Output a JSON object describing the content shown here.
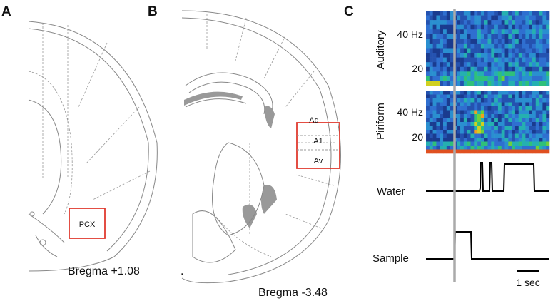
{
  "panels": [
    {
      "label": "A",
      "region": "PCX",
      "bregma": "Bregma +1.08",
      "mark": "."
    },
    {
      "label": "B",
      "regions": [
        "Ad",
        "A1",
        "Av"
      ],
      "bregma": "Bregma -3.48"
    },
    {
      "label": "C",
      "spectrograms": [
        {
          "name": "Auditory",
          "ticks": [
            "40 Hz",
            "20"
          ]
        },
        {
          "name": "Piriform",
          "ticks": [
            "40 Hz",
            "20"
          ]
        }
      ],
      "traces": [
        "Water",
        "Sample"
      ],
      "scale_bar": "1 sec"
    }
  ]
}
